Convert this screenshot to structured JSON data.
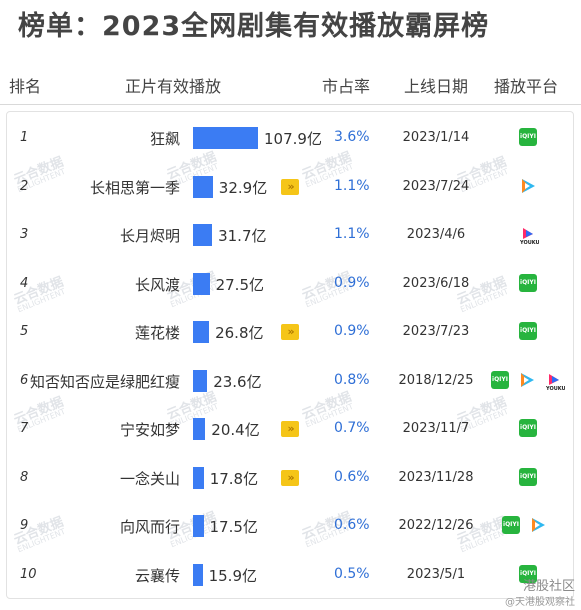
{
  "title": "榜单：2023全网剧集有效播放霸屏榜",
  "columns": {
    "rank": "排名",
    "title_play": "正片有效播放",
    "share": "市占率",
    "release": "上线日期",
    "platform": "播放平台"
  },
  "colors": {
    "bar": "#3b7cf3",
    "share_text": "#2f6fd6",
    "exclusive_badge": "#f5c518",
    "iqiyi": "#27b43e"
  },
  "chart_data": {
    "type": "bar",
    "unit": "亿",
    "categories": [
      "狂飙",
      "长相思第一季",
      "长月烬明",
      "长风渡",
      "莲花楼",
      "知否知否应是绿肥红瘦",
      "宁安如梦",
      "一念关山",
      "向风而行",
      "云襄传"
    ],
    "values": [
      107.9,
      32.9,
      31.7,
      27.5,
      26.8,
      23.6,
      20.4,
      17.8,
      17.5,
      15.9
    ],
    "ranks": [
      "1",
      "2",
      "3",
      "4",
      "5",
      "6",
      "7",
      "8",
      "9",
      "10"
    ],
    "value_labels": [
      "107.9亿",
      "32.9亿",
      "31.7亿",
      "27.5亿",
      "26.8亿",
      "23.6亿",
      "20.4亿",
      "17.8亿",
      "17.5亿",
      "15.9亿"
    ],
    "market_share": [
      "3.6%",
      "1.1%",
      "1.1%",
      "0.9%",
      "0.9%",
      "0.8%",
      "0.7%",
      "0.6%",
      "0.6%",
      "0.5%"
    ],
    "release_dates": [
      "2023/1/14",
      "2023/7/24",
      "2023/4/6",
      "2023/6/18",
      "2023/7/23",
      "2018/12/25",
      "2023/11/7",
      "2023/11/28",
      "2022/12/26",
      "2023/5/1"
    ],
    "exclusive_marker": [
      false,
      true,
      false,
      false,
      true,
      false,
      true,
      true,
      false,
      false
    ],
    "platforms": [
      [
        "iqiyi-icon"
      ],
      [
        "tencent-video-icon"
      ],
      [
        "youku-icon"
      ],
      [
        "iqiyi-icon"
      ],
      [
        "iqiyi-icon"
      ],
      [
        "iqiyi-icon",
        "tencent-video-icon",
        "youku-icon"
      ],
      [
        "iqiyi-icon"
      ],
      [
        "iqiyi-icon"
      ],
      [
        "iqiyi-icon",
        "tencent-video-icon"
      ],
      [
        "iqiyi-icon"
      ]
    ]
  },
  "watermark": {
    "text_top": "云合数据",
    "text_bottom": "ENLIGHTENT"
  },
  "footer": {
    "badge": "港股社区",
    "sub": "@天港股观察社"
  }
}
